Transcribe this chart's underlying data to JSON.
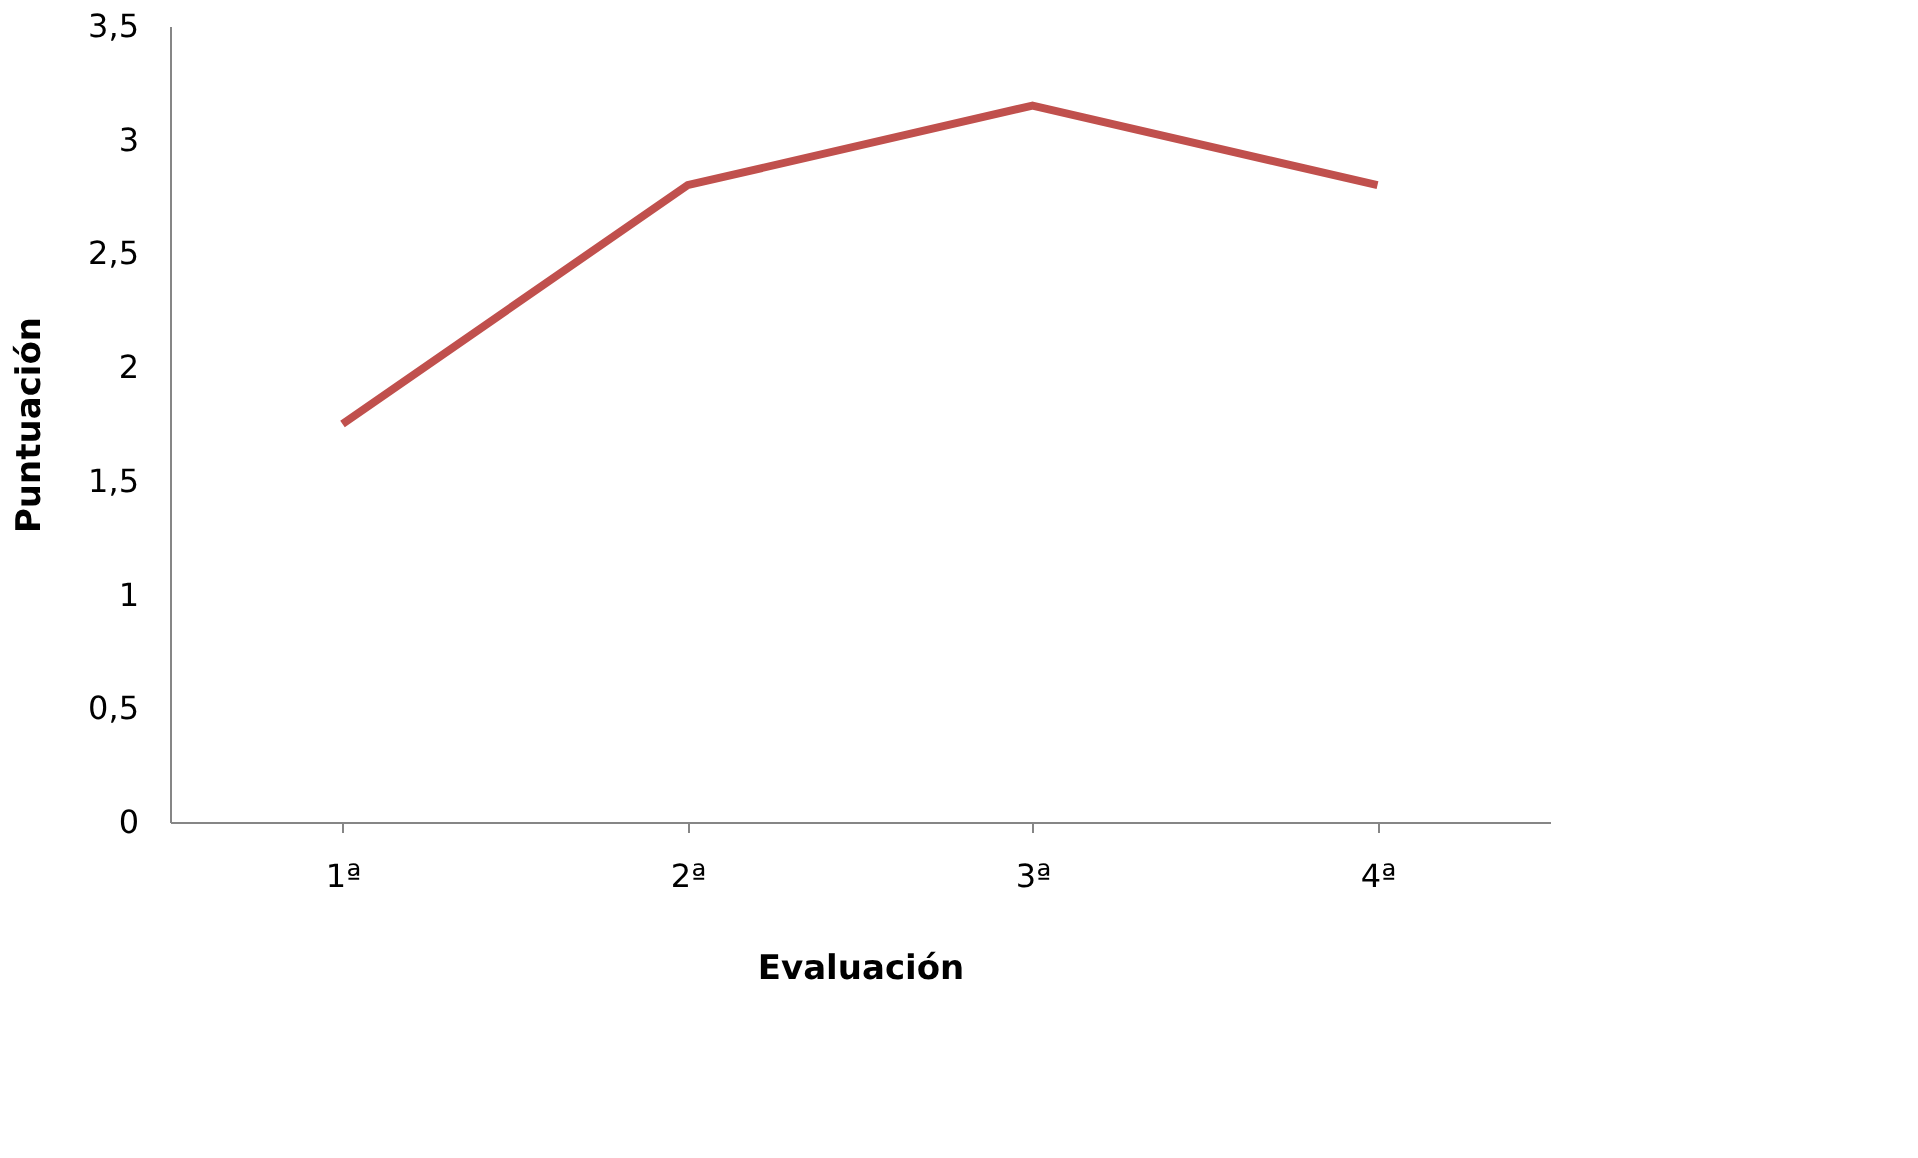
{
  "chart_data": {
    "type": "line",
    "xlabel": "Evaluación",
    "ylabel": "Puntuación",
    "categories": [
      "1ª",
      "2ª",
      "3ª",
      "4ª"
    ],
    "series": [
      {
        "color": "#c0504d",
        "values": [
          1.75,
          2.8,
          3.15,
          2.8
        ]
      }
    ],
    "ylim": [
      0,
      3.5
    ],
    "yticks": [
      0,
      {
        "value": 0.5,
        "label": "0,5"
      },
      1,
      {
        "value": 1.5,
        "label": "1,5"
      },
      2,
      {
        "value": 2.5,
        "label": "2,5"
      },
      3,
      {
        "value": 3.5,
        "label": "3,5"
      }
    ],
    "grid": false,
    "marker": "none",
    "line_style": "solid"
  }
}
